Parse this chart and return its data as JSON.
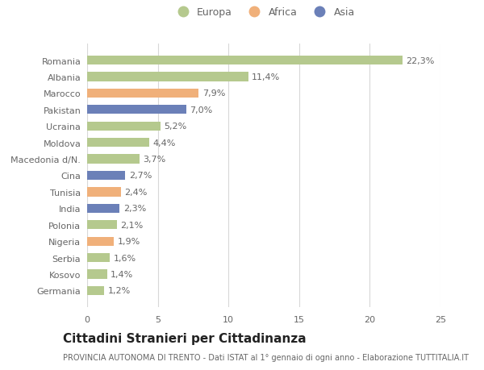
{
  "categories": [
    "Romania",
    "Albania",
    "Marocco",
    "Pakistan",
    "Ucraina",
    "Moldova",
    "Macedonia d/N.",
    "Cina",
    "Tunisia",
    "India",
    "Polonia",
    "Nigeria",
    "Serbia",
    "Kosovo",
    "Germania"
  ],
  "values": [
    22.3,
    11.4,
    7.9,
    7.0,
    5.2,
    4.4,
    3.7,
    2.7,
    2.4,
    2.3,
    2.1,
    1.9,
    1.6,
    1.4,
    1.2
  ],
  "labels": [
    "22,3%",
    "11,4%",
    "7,9%",
    "7,0%",
    "5,2%",
    "4,4%",
    "3,7%",
    "2,7%",
    "2,4%",
    "2,3%",
    "2,1%",
    "1,9%",
    "1,6%",
    "1,4%",
    "1,2%"
  ],
  "continents": [
    "Europa",
    "Europa",
    "Africa",
    "Asia",
    "Europa",
    "Europa",
    "Europa",
    "Asia",
    "Africa",
    "Asia",
    "Europa",
    "Africa",
    "Europa",
    "Europa",
    "Europa"
  ],
  "colors": {
    "Europa": "#b5c98e",
    "Africa": "#f0b07a",
    "Asia": "#6b80b8"
  },
  "legend_labels": [
    "Europa",
    "Africa",
    "Asia"
  ],
  "title": "Cittadini Stranieri per Cittadinanza",
  "subtitle": "PROVINCIA AUTONOMA DI TRENTO - Dati ISTAT al 1° gennaio di ogni anno - Elaborazione TUTTITALIA.IT",
  "xlim": [
    0,
    25
  ],
  "xticks": [
    0,
    5,
    10,
    15,
    20,
    25
  ],
  "bg_color": "#ffffff",
  "grid_color": "#d8d8d8",
  "bar_height": 0.55,
  "label_fontsize": 8,
  "tick_fontsize": 8,
  "title_fontsize": 11,
  "subtitle_fontsize": 7
}
